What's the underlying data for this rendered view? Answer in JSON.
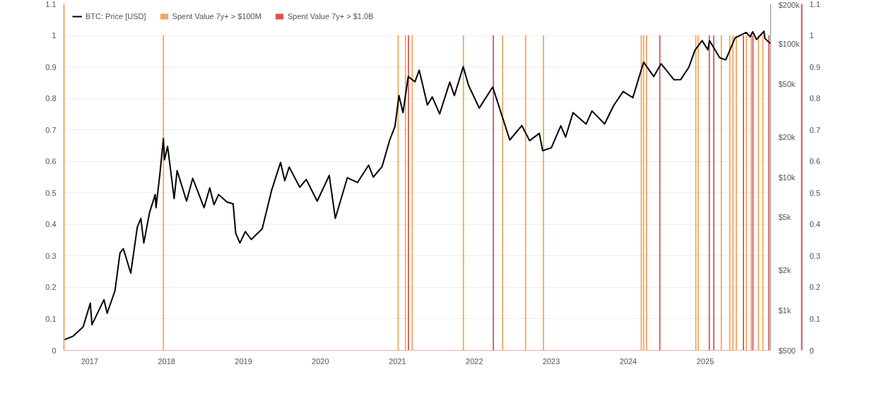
{
  "chart_data": {
    "type": "line",
    "marker": "none",
    "xlim": [
      "2016-09-01",
      "2025-11-07"
    ],
    "xticks": [
      "2017",
      "2018",
      "2019",
      "2020",
      "2021",
      "2022",
      "2023",
      "2024",
      "2025"
    ],
    "ylim": [
      0,
      1.1
    ],
    "yticks": [
      0,
      0.1,
      0.2,
      0.3,
      0.4,
      0.5,
      0.6,
      0.7,
      0.8,
      0.9,
      1,
      1.1
    ],
    "y2lim": [
      500,
      200000
    ],
    "y2ticks": [
      {
        "value": 500,
        "label": "$500"
      },
      {
        "value": 1000,
        "label": "$1k"
      },
      {
        "value": 2000,
        "label": "$2k"
      },
      {
        "value": 5000,
        "label": "$5k"
      },
      {
        "value": 10000,
        "label": "$10k"
      },
      {
        "value": 20000,
        "label": "$20k"
      },
      {
        "value": 50000,
        "label": "$50k"
      },
      {
        "value": 100000,
        "label": "$100k"
      },
      {
        "value": 200000,
        "label": "$200k"
      }
    ],
    "y3lim": [
      0,
      1.1
    ],
    "y3ticks": [
      0,
      0.1,
      0.2,
      0.3,
      0.4,
      0.5,
      0.6,
      0.7,
      0.8,
      0.9,
      1,
      1.1
    ],
    "log": "y2",
    "grid": "y",
    "legend": "top left",
    "series": [
      {
        "name": "Spent Value 7y+ > $100M",
        "type": "bar",
        "axis": "y",
        "color": "#f5a55a",
        "x": [
          "2017-12-17",
          "2021-01-04",
          "2021-02-08",
          "2021-03-12",
          "2021-11-10",
          "2022-05-15",
          "2022-09-01",
          "2022-11-25",
          "2024-03-03",
          "2024-03-14",
          "2024-03-28",
          "2024-11-17",
          "2024-11-28",
          "2025-03-18",
          "2025-04-27",
          "2025-05-12",
          "2025-05-28",
          "2025-07-15",
          "2025-08-07",
          "2025-09-10",
          "2025-10-01"
        ],
        "values": [
          1,
          1,
          1,
          1,
          1,
          1,
          1,
          1,
          1,
          1,
          1,
          1,
          1,
          1,
          1,
          1,
          1,
          1,
          1,
          1,
          1
        ]
      },
      {
        "name": "Spent Value 7y+ > $1.0B",
        "type": "bar",
        "axis": "y3",
        "color": "#d9534f",
        "x": [
          "2021-02-22",
          "2022-04-01",
          "2024-05-30",
          "2025-01-20",
          "2025-02-10",
          "2025-07-01",
          "2025-08-15",
          "2025-10-30"
        ],
        "values": [
          1,
          1,
          1,
          1,
          1,
          1,
          1,
          1
        ]
      },
      {
        "name": "BTC: Price [USD]",
        "axis": "y2",
        "color": "#000000",
        "x": [
          "2016-09-01",
          "2016-10-15",
          "2016-12-01",
          "2017-01-04",
          "2017-01-12",
          "2017-02-20",
          "2017-03-10",
          "2017-03-25",
          "2017-05-01",
          "2017-05-25",
          "2017-06-10",
          "2017-07-15",
          "2017-08-15",
          "2017-09-01",
          "2017-09-15",
          "2017-10-12",
          "2017-11-08",
          "2017-11-12",
          "2017-12-01",
          "2017-12-17",
          "2017-12-22",
          "2018-01-06",
          "2018-02-06",
          "2018-02-20",
          "2018-04-06",
          "2018-05-05",
          "2018-06-28",
          "2018-07-25",
          "2018-08-14",
          "2018-09-05",
          "2018-10-15",
          "2018-11-13",
          "2018-11-25",
          "2018-12-15",
          "2019-01-10",
          "2019-02-07",
          "2019-03-31",
          "2019-05-15",
          "2019-06-26",
          "2019-07-16",
          "2019-08-06",
          "2019-09-25",
          "2019-10-26",
          "2019-12-17",
          "2020-02-12",
          "2020-03-12",
          "2020-05-08",
          "2020-06-25",
          "2020-08-17",
          "2020-09-08",
          "2020-10-20",
          "2020-11-25",
          "2020-12-20",
          "2021-01-08",
          "2021-01-27",
          "2021-02-21",
          "2021-03-25",
          "2021-04-14",
          "2021-05-23",
          "2021-06-15",
          "2021-07-20",
          "2021-09-06",
          "2021-09-28",
          "2021-11-09",
          "2021-12-04",
          "2022-01-24",
          "2022-03-29",
          "2022-05-12",
          "2022-06-18",
          "2022-08-14",
          "2022-09-20",
          "2022-11-05",
          "2022-11-21",
          "2023-01-01",
          "2023-02-15",
          "2023-03-10",
          "2023-04-14",
          "2023-06-15",
          "2023-07-13",
          "2023-09-11",
          "2023-10-24",
          "2023-12-08",
          "2024-01-23",
          "2024-03-14",
          "2024-05-01",
          "2024-06-05",
          "2024-08-05",
          "2024-09-06",
          "2024-10-15",
          "2024-11-13",
          "2024-12-17",
          "2025-01-13",
          "2025-01-21",
          "2025-03-10",
          "2025-04-08",
          "2025-05-22",
          "2025-07-14",
          "2025-08-02",
          "2025-08-14",
          "2025-09-01",
          "2025-10-06",
          "2025-10-11",
          "2025-11-05"
        ],
        "values": [
          600,
          640,
          750,
          1130,
          780,
          1050,
          1200,
          950,
          1400,
          2700,
          2900,
          1900,
          4200,
          4900,
          3200,
          5400,
          7400,
          5900,
          10800,
          19500,
          13500,
          17000,
          6900,
          11200,
          6600,
          9800,
          5900,
          8300,
          6200,
          7400,
          6500,
          6300,
          3800,
          3200,
          3900,
          3400,
          4100,
          8000,
          12900,
          9400,
          11900,
          8400,
          9600,
          6600,
          10300,
          4900,
          9900,
          9100,
          12300,
          10000,
          12000,
          19000,
          24000,
          41000,
          30500,
          57000,
          52000,
          63500,
          34800,
          40000,
          29800,
          51700,
          41000,
          67500,
          49000,
          33000,
          47500,
          28900,
          19000,
          24400,
          18800,
          21300,
          15800,
          16600,
          24300,
          20000,
          30500,
          25000,
          31400,
          25100,
          34500,
          44000,
          39500,
          73000,
          57000,
          71000,
          53900,
          54000,
          67000,
          90000,
          106000,
          90500,
          106000,
          79000,
          76000,
          111000,
          122000,
          113000,
          123500,
          108000,
          124500,
          110000,
          101000
        ]
      }
    ]
  }
}
